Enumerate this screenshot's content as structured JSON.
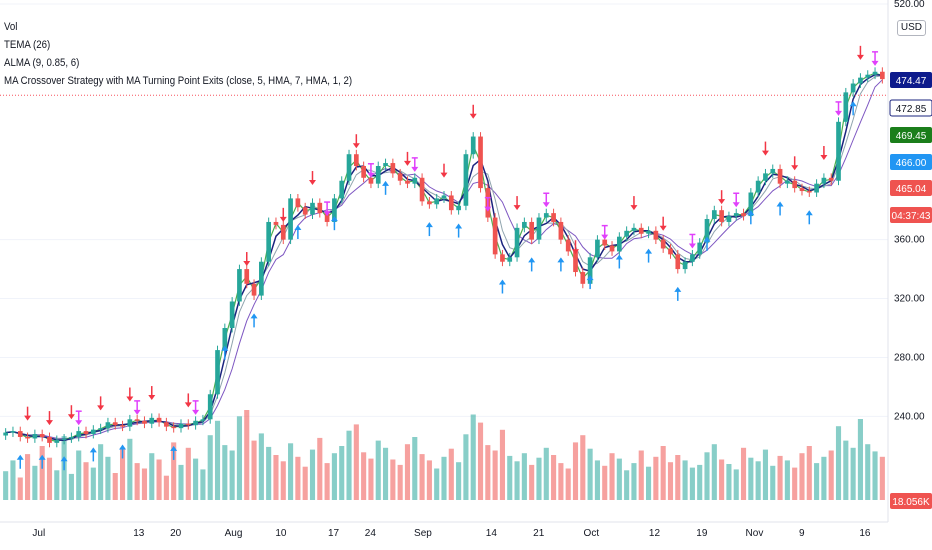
{
  "legend": {
    "vol": "Vol",
    "tema": "TEMA (26)",
    "alma": "ALMA (9, 0.85, 6)",
    "strategy": "MA Crossover Strategy with MA Turning Point Exits (close, 5, HMA, 7, HMA, 1, 2)"
  },
  "currency_badge": "USD",
  "colors": {
    "up": "#26a69a",
    "down": "#ef5350",
    "long_arrow": "#2196f3",
    "short_arrow": "#f23645",
    "exit_arrow": "#e040fb",
    "tema_line": "#1a237e",
    "alma_line": "#7e57c2",
    "ma_fast": "#4caf50",
    "ma_slow": "#90a4ae",
    "ref_line": "#f7525f"
  },
  "chart_data": {
    "type": "candlestick",
    "y_axis": {
      "ticks": [
        "520.00",
        "360.00",
        "320.00",
        "280.00",
        "240.00"
      ],
      "range": [
        190,
        520
      ]
    },
    "x_axis": {
      "ticks": [
        "Jul",
        "13",
        "20",
        "Aug",
        "10",
        "17",
        "24",
        "Sep",
        "14",
        "21",
        "Oct",
        "12",
        "19",
        "Nov",
        "9",
        "16"
      ]
    },
    "price_tags": [
      {
        "label": "474.47",
        "color": "#0d1b8c"
      },
      {
        "label": "472.85",
        "color": "#ffffff",
        "text_color": "#131722",
        "border": "#1a237e"
      },
      {
        "label": "469.45",
        "color": "#1b7e1b"
      },
      {
        "label": "466.00",
        "color": "#2196f3"
      },
      {
        "label": "465.04",
        "color": "#ef5350"
      },
      {
        "label": "04:37:43",
        "color": "#ef5350"
      },
      {
        "label": "18.056K",
        "color": "#ef5350"
      }
    ],
    "closes": [
      229,
      230,
      226,
      225,
      228,
      226,
      222,
      224,
      225,
      226,
      230,
      228,
      231,
      232,
      236,
      234,
      233,
      238,
      237,
      235,
      239,
      236,
      233,
      232,
      235,
      234,
      237,
      238,
      255,
      285,
      300,
      318,
      340,
      330,
      322,
      345,
      372,
      370,
      360,
      388,
      382,
      377,
      385,
      378,
      372,
      388,
      400,
      418,
      410,
      402,
      398,
      410,
      412,
      405,
      400,
      398,
      402,
      386,
      384,
      388,
      390,
      380,
      383,
      418,
      430,
      395,
      375,
      350,
      345,
      348,
      368,
      372,
      360,
      375,
      378,
      372,
      360,
      352,
      338,
      330,
      348,
      360,
      356,
      352,
      362,
      366,
      368,
      364,
      366,
      360,
      354,
      350,
      340,
      345,
      350,
      358,
      374,
      380,
      372,
      376,
      378,
      376,
      392,
      400,
      405,
      408,
      398,
      400,
      395,
      393,
      392,
      398,
      402,
      400,
      440,
      460,
      466,
      470,
      472,
      474,
      469
    ],
    "volumes": [
      0.32,
      0.44,
      0.25,
      0.51,
      0.38,
      0.6,
      0.47,
      0.33,
      0.71,
      0.29,
      0.55,
      0.42,
      0.36,
      0.62,
      0.48,
      0.3,
      0.57,
      0.68,
      0.41,
      0.35,
      0.52,
      0.45,
      0.27,
      0.64,
      0.39,
      0.58,
      0.46,
      0.34,
      0.72,
      0.88,
      0.61,
      0.55,
      0.93,
      1.0,
      0.66,
      0.74,
      0.59,
      0.5,
      0.43,
      0.63,
      0.48,
      0.37,
      0.56,
      0.69,
      0.41,
      0.52,
      0.6,
      0.77,
      0.84,
      0.53,
      0.46,
      0.66,
      0.58,
      0.45,
      0.39,
      0.62,
      0.7,
      0.51,
      0.44,
      0.35,
      0.48,
      0.57,
      0.42,
      0.73,
      0.95,
      0.86,
      0.61,
      0.55,
      0.78,
      0.49,
      0.43,
      0.52,
      0.39,
      0.47,
      0.58,
      0.5,
      0.41,
      0.35,
      0.64,
      0.72,
      0.57,
      0.44,
      0.38,
      0.52,
      0.46,
      0.33,
      0.41,
      0.55,
      0.37,
      0.48,
      0.6,
      0.42,
      0.5,
      0.44,
      0.36,
      0.39,
      0.53,
      0.62,
      0.45,
      0.4,
      0.34,
      0.58,
      0.47,
      0.43,
      0.56,
      0.38,
      0.49,
      0.44,
      0.36,
      0.52,
      0.6,
      0.41,
      0.48,
      0.55,
      0.82,
      0.66,
      0.58,
      0.9,
      0.62,
      0.54,
      0.48
    ],
    "long_entries": [
      2,
      5,
      8,
      12,
      16,
      23,
      30,
      34,
      40,
      45,
      52,
      58,
      62,
      68,
      72,
      76,
      80,
      84,
      88,
      92,
      96,
      102,
      106,
      110,
      116
    ],
    "short_entries": [
      3,
      6,
      9,
      13,
      17,
      20,
      25,
      33,
      38,
      42,
      48,
      55,
      60,
      64,
      70,
      78,
      86,
      90,
      98,
      104,
      108,
      112,
      117
    ],
    "exits": [
      10,
      18,
      26,
      44,
      50,
      56,
      66,
      74,
      82,
      94,
      100,
      114,
      119
    ]
  }
}
